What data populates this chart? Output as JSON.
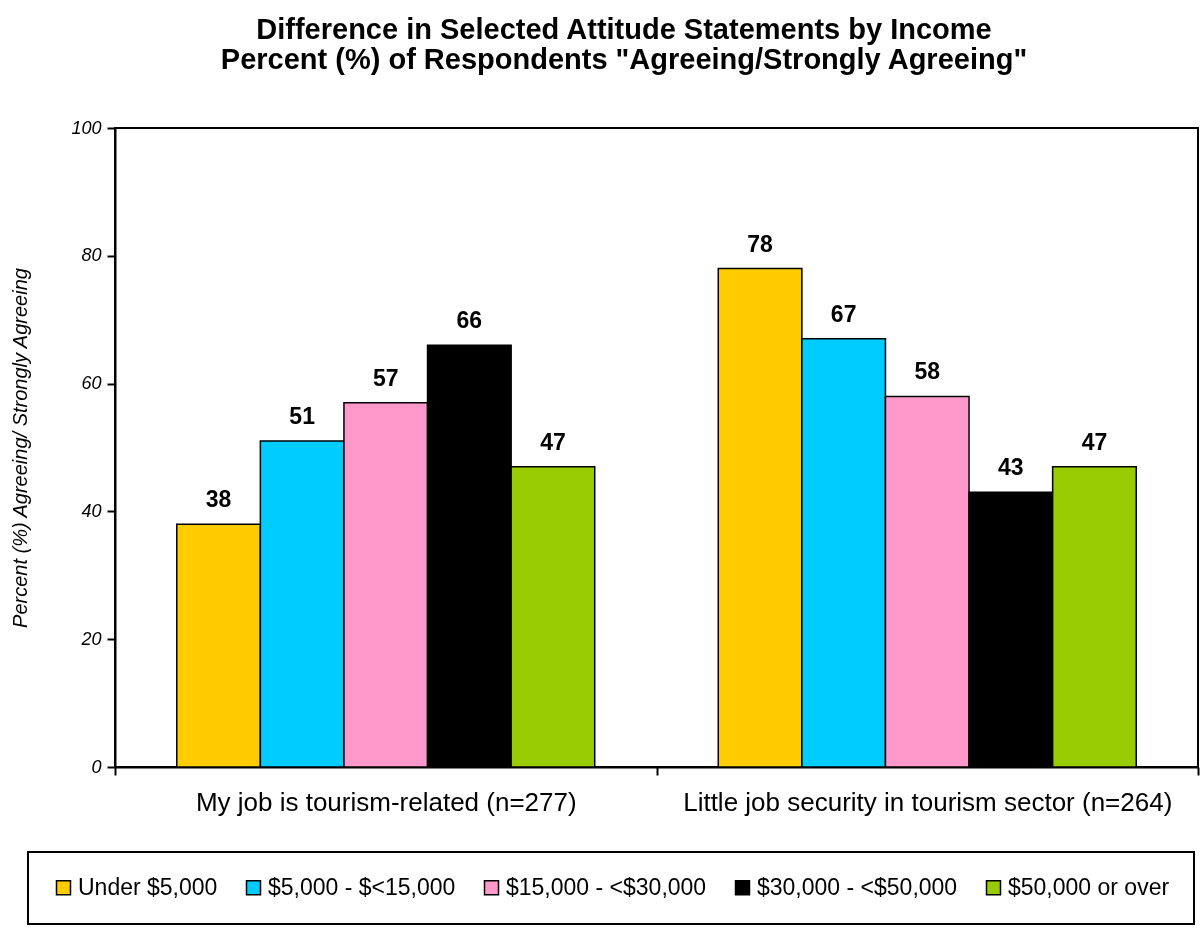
{
  "chart_data": {
    "type": "bar",
    "title": "Difference in Selected Attitude Statements by Income",
    "subtitle": "Percent (%) of Respondents \"Agreeing/Strongly Agreeing\"",
    "ylabel": "Percent (%) Agreeing/ Strongly Agreeing",
    "categories": [
      "My job is tourism-related (n=277)",
      "Little job security in tourism sector (n=264)"
    ],
    "series": [
      {
        "name": "Under $5,000",
        "color": "#ffcc00",
        "values": [
          38,
          78
        ]
      },
      {
        "name": "$5,000 - $<15,000",
        "color": "#00ccff",
        "values": [
          51,
          67
        ]
      },
      {
        "name": "$15,000 - <$30,000",
        "color": "#ff99cc",
        "values": [
          57,
          58
        ]
      },
      {
        "name": "$30,000 - <$50,000",
        "color": "#000000",
        "values": [
          66,
          43
        ]
      },
      {
        "name": "$50,000 or over",
        "color": "#99cc00",
        "values": [
          47,
          47
        ]
      }
    ],
    "ylim": [
      0,
      100
    ],
    "yticks": [
      0,
      20,
      40,
      60,
      80,
      100
    ],
    "data_labels": true,
    "legend": "bottom",
    "grid": false
  }
}
